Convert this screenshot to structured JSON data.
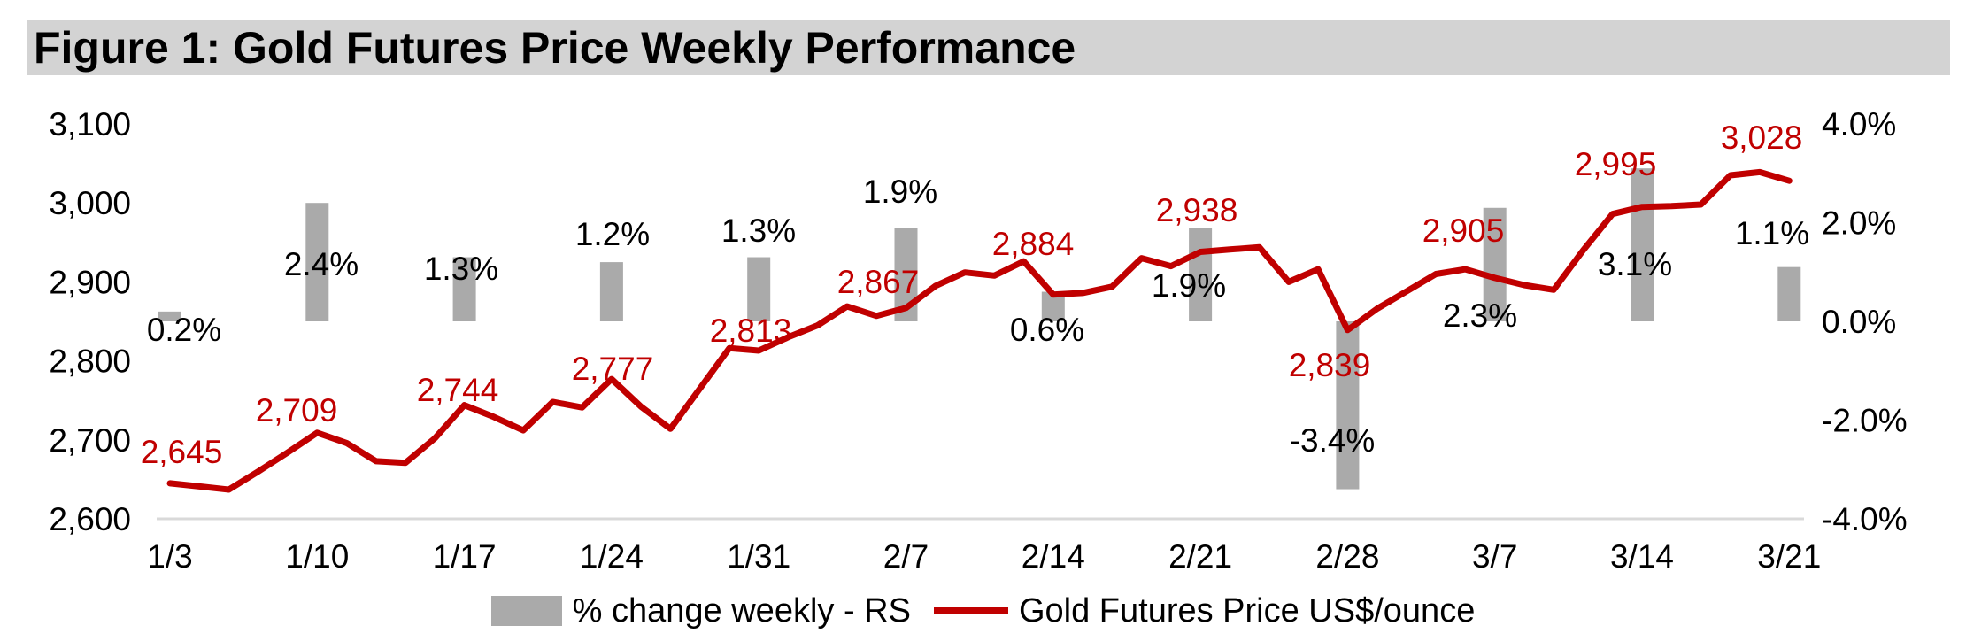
{
  "title": "Figure 1: Gold Futures Price Weekly Performance",
  "colors": {
    "line": "#c00000",
    "bar": "#aaaaaa",
    "title_bg": "#d3d3d3",
    "axis_line": "#d9d9d9",
    "text": "#000000",
    "price_label": "#c00000"
  },
  "legend": {
    "items": [
      {
        "label": "% change weekly - RS",
        "swatch": "bar"
      },
      {
        "label": "Gold Futures Price US$/ounce",
        "swatch": "line"
      }
    ]
  },
  "chart_data": {
    "type": "combo",
    "title": "Figure 1: Gold Futures Price Weekly Performance",
    "x_labels": [
      "1/3",
      "1/10",
      "1/17",
      "1/24",
      "1/31",
      "2/7",
      "2/14",
      "2/21",
      "2/28",
      "3/7",
      "3/14",
      "3/21"
    ],
    "left_axis": {
      "name": "Gold Futures Price US$/ounce",
      "min": 2600,
      "max": 3100,
      "tick_values": [
        3100,
        3000,
        2900,
        2800,
        2700,
        2600
      ],
      "tick_labels": [
        "3,100",
        "3,000",
        "2,900",
        "2,800",
        "2,700",
        "2,600"
      ]
    },
    "right_axis": {
      "name": "% change weekly",
      "min": -4,
      "max": 4,
      "tick_values": [
        4,
        2,
        0,
        -2,
        -4
      ],
      "tick_labels": [
        "4.0%",
        "2.0%",
        "0.0%",
        "-2.0%",
        "-4.0%"
      ]
    },
    "series": [
      {
        "name": "% change weekly - RS",
        "type": "bar",
        "axis": "right",
        "values": [
          0.2,
          2.4,
          1.3,
          1.2,
          1.3,
          1.9,
          0.6,
          1.9,
          -3.4,
          2.3,
          3.1,
          1.1
        ],
        "labels": [
          "0.2%",
          "2.4%",
          "1.3%",
          "1.2%",
          "1.3%",
          "1.9%",
          "0.6%",
          "1.9%",
          "-3.4%",
          "2.3%",
          "3.1%",
          "1.1%"
        ]
      },
      {
        "name": "Gold Futures Price US$/ounce",
        "type": "line",
        "axis": "left",
        "weekly_close": [
          2645,
          2709,
          2744,
          2777,
          2813,
          2867,
          2884,
          2938,
          2839,
          2905,
          2995,
          3028
        ],
        "labels": [
          "2,645",
          "2,709",
          "2,744",
          "2,777",
          "2,813",
          "2,867",
          "2,884",
          "2,938",
          "2,839",
          "2,905",
          "2,995",
          "3,028"
        ],
        "daily": [
          2645,
          2641,
          2637,
          2660,
          2684,
          2709,
          2696,
          2673,
          2671,
          2702,
          2744,
          2729,
          2712,
          2748,
          2741,
          2777,
          2742,
          2714,
          2765,
          2816,
          2813,
          2830,
          2845,
          2869,
          2857,
          2867,
          2895,
          2912,
          2908,
          2926,
          2884,
          2886,
          2894,
          2930,
          2920,
          2938,
          2941,
          2944,
          2900,
          2916,
          2839,
          2866,
          2888,
          2910,
          2916,
          2905,
          2896,
          2890,
          2940,
          2986,
          2995,
          2996,
          2998,
          3035,
          3039,
          3028
        ]
      }
    ],
    "grid": false,
    "legend_position": "bottom"
  }
}
